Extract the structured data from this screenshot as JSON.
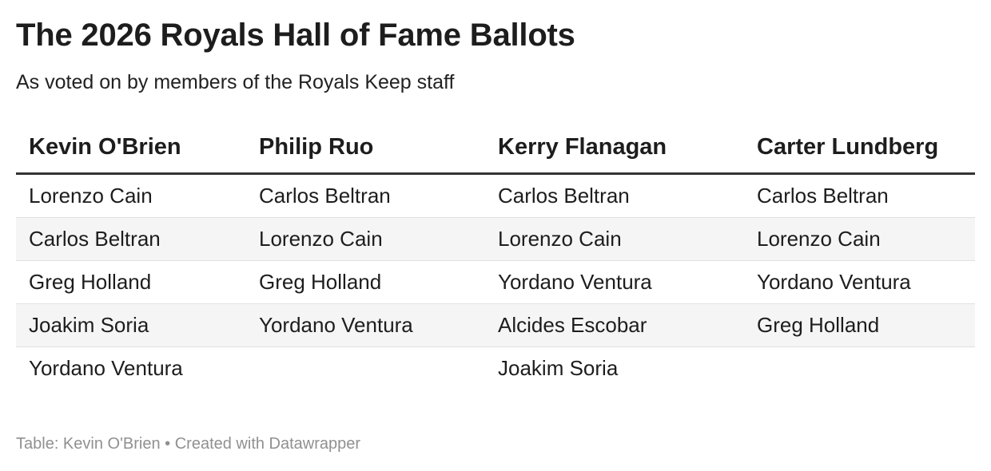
{
  "title": "The 2026 Royals Hall of Fame Ballots",
  "subtitle": "As voted on by members of the Royals Keep staff",
  "table": {
    "headers": [
      "Kevin O'Brien",
      "Philip Ruo",
      "Kerry Flanagan",
      "Carter Lundberg"
    ],
    "rows": [
      [
        "Lorenzo Cain",
        "Carlos Beltran",
        "Carlos Beltran",
        "Carlos Beltran"
      ],
      [
        "Carlos Beltran",
        "Lorenzo Cain",
        "Lorenzo Cain",
        "Lorenzo Cain"
      ],
      [
        "Greg Holland",
        "Greg Holland",
        "Yordano Ventura",
        "Yordano Ventura"
      ],
      [
        "Joakim Soria",
        "Yordano Ventura",
        "Alcides Escobar",
        "Greg Holland"
      ],
      [
        "Yordano Ventura",
        "",
        "Joakim Soria",
        ""
      ]
    ]
  },
  "footer": {
    "source_label": "Table: Kevin O'Brien",
    "separator": "•",
    "credit": "Created with Datawrapper"
  },
  "colors": {
    "header_rule": "#333333",
    "row_stripe": "#f5f5f5",
    "row_border": "#e0e0e0",
    "footer_text": "#909090"
  }
}
